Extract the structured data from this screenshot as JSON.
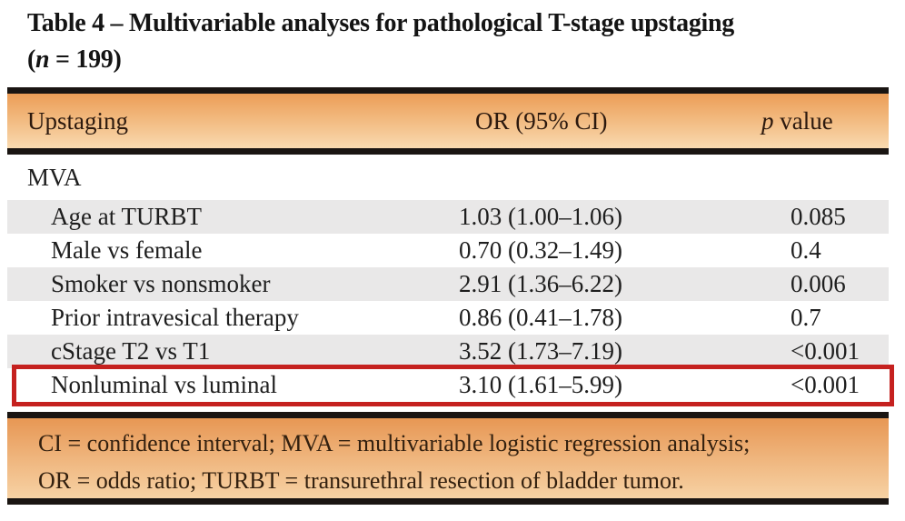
{
  "title": {
    "line1": "Table 4 – Multivariable analyses for pathological T-stage upstaging",
    "line2_prefix": "(",
    "line2_n": "n",
    "line2_suffix": " = 199)"
  },
  "header": {
    "col_upstaging": "Upstaging",
    "col_or": "OR (95% CI)",
    "col_p_italic": "p",
    "col_p_rest": " value"
  },
  "section_label": "MVA",
  "rows": [
    {
      "label": "Age at TURBT",
      "or_ci": "1.03 (1.00–1.06)",
      "p": "0.085"
    },
    {
      "label": "Male vs female",
      "or_ci": "0.70 (0.32–1.49)",
      "p": "0.4"
    },
    {
      "label": "Smoker vs nonsmoker",
      "or_ci": "2.91 (1.36–6.22)",
      "p": "0.006"
    },
    {
      "label": "Prior intravesical therapy",
      "or_ci": "0.86 (0.41–1.78)",
      "p": "0.7"
    },
    {
      "label": "cStage T2 vs T1",
      "or_ci": "3.52 (1.73–7.19)",
      "p": "<0.001"
    },
    {
      "label": "Nonluminal vs luminal",
      "or_ci": "3.10 (1.61–5.99)",
      "p": "<0.001",
      "highlighted": true
    }
  ],
  "footnote": {
    "lines": [
      "CI = confidence interval; MVA = multivariable logistic regression analysis;",
      "OR = odds ratio; TURBT = transurethral resection of bladder tumor."
    ]
  },
  "colors": {
    "header_gradient_top": "#ec9d57",
    "header_gradient_bottom": "#f9dab0",
    "footer_gradient_top": "#e79754",
    "footer_gradient_bottom": "#f7d2a4",
    "row_shade": "#e9e8e8",
    "highlight_border": "#c5211f",
    "rule": "#1a1512",
    "header_text": "#2c190e",
    "body_text": "#1e1e1e"
  }
}
